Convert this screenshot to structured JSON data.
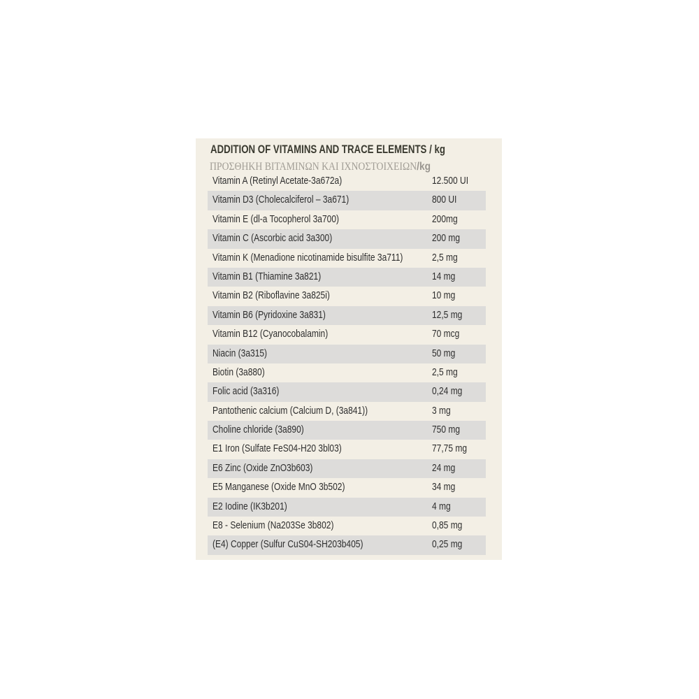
{
  "title": "ADDITION OF VITAMINS AND TRACE ELEMENTS / kg",
  "greek_title": "ΠΡΟΣΘΗΚΗ ΒΙΤΑΜΙΝΩΝ ΚΑΙ ΙΧΝΟΣΤΟΙΧΕΙΩΝ",
  "greek_unit": "/kg",
  "rows": [
    {
      "name": "Vitamin A (Retinyl Acetate-3a672a)",
      "value": "12.500 UI"
    },
    {
      "name": "Vitamin D3 (Cholecalciferol – 3a671)",
      "value": "800 UI"
    },
    {
      "name": "Vitamin E (dl-a Tocopherol 3a700)",
      "value": "200mg"
    },
    {
      "name": "Vitamin C (Ascorbic acid 3a300)",
      "value": "200 mg"
    },
    {
      "name": "Vitamin K (Menadione nicotinamide bisulfite 3a711)",
      "value": "2,5 mg"
    },
    {
      "name": "Vitamin B1 (Thiamine 3a821)",
      "value": "14 mg"
    },
    {
      "name": "Vitamin B2 (Riboflavine 3a825i)",
      "value": "10 mg"
    },
    {
      "name": "Vitamin B6 (Pyridoxine 3a831)",
      "value": "12,5 mg"
    },
    {
      "name": "Vitamin B12 (Cyanocobalamin)",
      "value": "70 mcg"
    },
    {
      "name": "Niacin (3a315)",
      "value": "50 mg"
    },
    {
      "name": "Biotin (3a880)",
      "value": "2,5 mg"
    },
    {
      "name": "Folic acid (3a316)",
      "value": "0,24 mg"
    },
    {
      "name": "Pantothenic calcium (Calcium D, (3a841))",
      "value": "3 mg"
    },
    {
      "name": "Choline chloride (3a890)",
      "value": "750 mg"
    },
    {
      "name": "E1 Iron (Sulfate FeS04-H20 3bl03)",
      "value": "77,75 mg"
    },
    {
      "name": "E6 Zinc (Oxide ZnO3b603)",
      "value": "24 mg"
    },
    {
      "name": "E5 Manganese (Oxide MnO 3b502)",
      "value": "34 mg"
    },
    {
      "name": "E2 Iodine (IK3b201)",
      "value": "4 mg"
    },
    {
      "name": "E8 - Selenium (Na203Se 3b802)",
      "value": "0,85 mg"
    },
    {
      "name": "(E4) Copper (Sulfur CuS04-SH203b405)",
      "value": "0,25 mg"
    }
  ]
}
